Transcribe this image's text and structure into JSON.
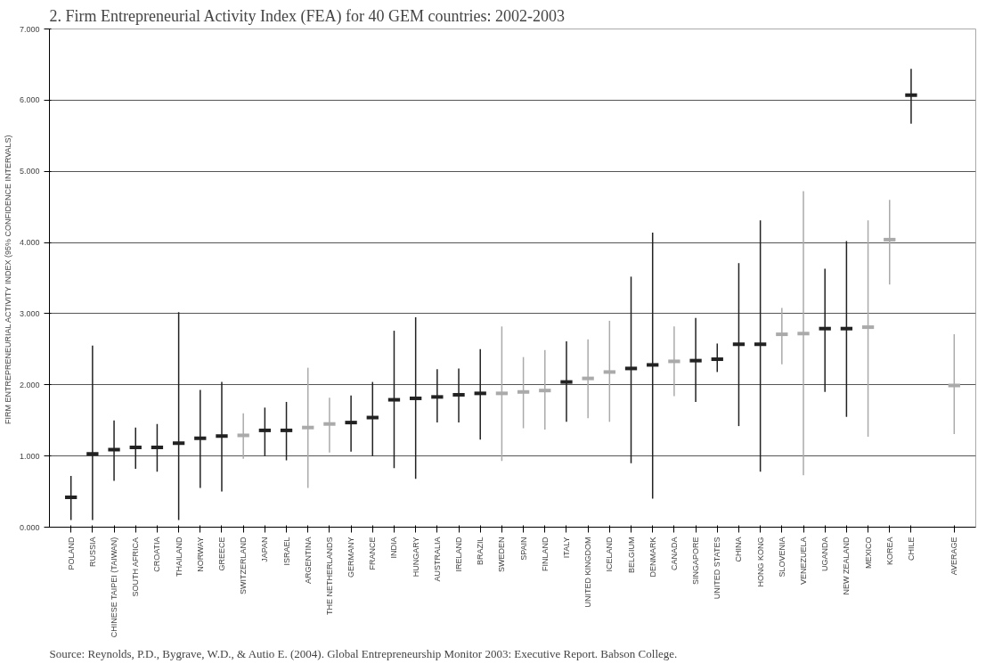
{
  "chart_data": {
    "type": "scatter",
    "title": "2. Firm Entrepreneurial Activity Index (FEA) for 40 GEM countries: 2002-2003",
    "ylabel": "FIRM ENTREPRENEURIAL ACTIVITY INDEX (95%  CONFIDENCE INTERVALS)",
    "annotations": [
      "Source: Reynolds, P.D., Bygrave, W.D., & Autio E. (2004). Global Entrepreneurship Monitor 2003: Executive Report. Babson College."
    ],
    "categories": [
      "POLAND",
      "RUSSIA",
      "CHINESE TAIPEI (TAIWAN)",
      "SOUTH AFRICA",
      "CROATIA",
      "THAILAND",
      "NORWAY",
      "GREECE",
      "SWITZERLAND",
      "JAPAN",
      "ISRAEL",
      "ARGENTINA",
      "THE NETHERLANDS",
      "GERMANY",
      "FRANCE",
      "INDIA",
      "HUNGARY",
      "AUSTRALIA",
      "IRELAND",
      "BRAZIL",
      "SWEDEN",
      "SPAIN",
      "FINLAND",
      "ITALY",
      "UNITED KINGDOM",
      "ICELAND",
      "BELGIUM",
      "DENMARK",
      "CANADA",
      "SINGAPORE",
      "UNITED STATES",
      "CHINA",
      "HONG KONG",
      "SLOVENIA",
      "VENEZUELA",
      "UGANDA",
      "NEW ZEALAND",
      "MEXICO",
      "KOREA",
      "CHILE",
      null,
      "AVERAGE"
    ],
    "values": [
      0.42,
      1.03,
      1.09,
      1.12,
      1.12,
      1.18,
      1.25,
      1.28,
      1.29,
      1.36,
      1.36,
      1.4,
      1.45,
      1.47,
      1.54,
      1.79,
      1.81,
      1.83,
      1.86,
      1.88,
      1.88,
      1.9,
      1.92,
      2.04,
      2.09,
      2.18,
      2.23,
      2.28,
      2.33,
      2.34,
      2.36,
      2.57,
      2.57,
      2.71,
      2.72,
      2.79,
      2.79,
      2.81,
      4.04,
      6.07,
      null,
      1.99
    ],
    "errors": [
      [
        0.1,
        0.72
      ],
      [
        0.1,
        2.55
      ],
      [
        0.65,
        1.5
      ],
      [
        0.82,
        1.4
      ],
      [
        0.78,
        1.45
      ],
      [
        0.1,
        3.02
      ],
      [
        0.55,
        1.93
      ],
      [
        0.5,
        2.04
      ],
      [
        0.96,
        1.6
      ],
      [
        1.0,
        1.68
      ],
      [
        0.94,
        1.76
      ],
      [
        0.55,
        2.24
      ],
      [
        1.05,
        1.82
      ],
      [
        1.06,
        1.85
      ],
      [
        1.0,
        2.04
      ],
      [
        0.83,
        2.76
      ],
      [
        0.68,
        2.95
      ],
      [
        1.47,
        2.22
      ],
      [
        1.47,
        2.23
      ],
      [
        1.23,
        2.5
      ],
      [
        0.93,
        2.82
      ],
      [
        1.39,
        2.39
      ],
      [
        1.37,
        2.49
      ],
      [
        1.48,
        2.61
      ],
      [
        1.53,
        2.64
      ],
      [
        1.48,
        2.9
      ],
      [
        0.9,
        3.52
      ],
      [
        0.4,
        4.14
      ],
      [
        1.84,
        2.82
      ],
      [
        1.76,
        2.94
      ],
      [
        2.18,
        2.58
      ],
      [
        1.42,
        3.71
      ],
      [
        0.78,
        4.31
      ],
      [
        2.29,
        3.08
      ],
      [
        0.73,
        4.72
      ],
      [
        1.9,
        3.63
      ],
      [
        1.55,
        4.02
      ],
      [
        1.27,
        4.31
      ],
      [
        3.41,
        4.6
      ],
      [
        5.67,
        6.44
      ],
      null,
      [
        1.31,
        2.71
      ]
    ],
    "colors": [
      "#222222",
      "#222222",
      "#222222",
      "#222222",
      "#222222",
      "#222222",
      "#222222",
      "#222222",
      "#aaaaaa",
      "#222222",
      "#222222",
      "#aaaaaa",
      "#aaaaaa",
      "#222222",
      "#222222",
      "#222222",
      "#222222",
      "#222222",
      "#222222",
      "#222222",
      "#aaaaaa",
      "#aaaaaa",
      "#aaaaaa",
      "#222222",
      "#aaaaaa",
      "#aaaaaa",
      "#222222",
      "#222222",
      "#aaaaaa",
      "#222222",
      "#222222",
      "#222222",
      "#222222",
      "#aaaaaa",
      "#aaaaaa",
      "#222222",
      "#222222",
      "#aaaaaa",
      "#aaaaaa",
      "#222222",
      null,
      "#aaaaaa"
    ],
    "ylim": [
      0,
      7
    ],
    "yticks": [
      {
        "value": 0,
        "label": "0.000"
      },
      {
        "value": 1,
        "label": "1.000"
      },
      {
        "value": 2,
        "label": "2.000"
      },
      {
        "value": 3,
        "label": "3.000"
      },
      {
        "value": 4,
        "label": "4.000"
      },
      {
        "value": 5,
        "label": "5.000"
      },
      {
        "value": 6,
        "label": "6.000"
      },
      {
        "value": 7,
        "label": "7.000"
      }
    ],
    "grid": "y"
  }
}
